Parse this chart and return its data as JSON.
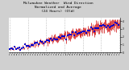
{
  "title_line1": "Milwaukee Weather  Wind Direction",
  "title_line2": "Normalized and Average",
  "title_line3": "(24 Hours) (Old)",
  "title_fontsize": 3.2,
  "bg_color": "#d0d0d0",
  "plot_bg_color": "#ffffff",
  "n_points": 144,
  "y_min": 0,
  "y_max": 400,
  "y_ticks": [
    0,
    90,
    180,
    270,
    360
  ],
  "y_tick_labels": [
    "0",
    "1",
    "2",
    "3",
    "4"
  ],
  "red_color": "#cc0000",
  "blue_color": "#0000cc",
  "grid_color": "#888888",
  "n_grid_lines": 7
}
